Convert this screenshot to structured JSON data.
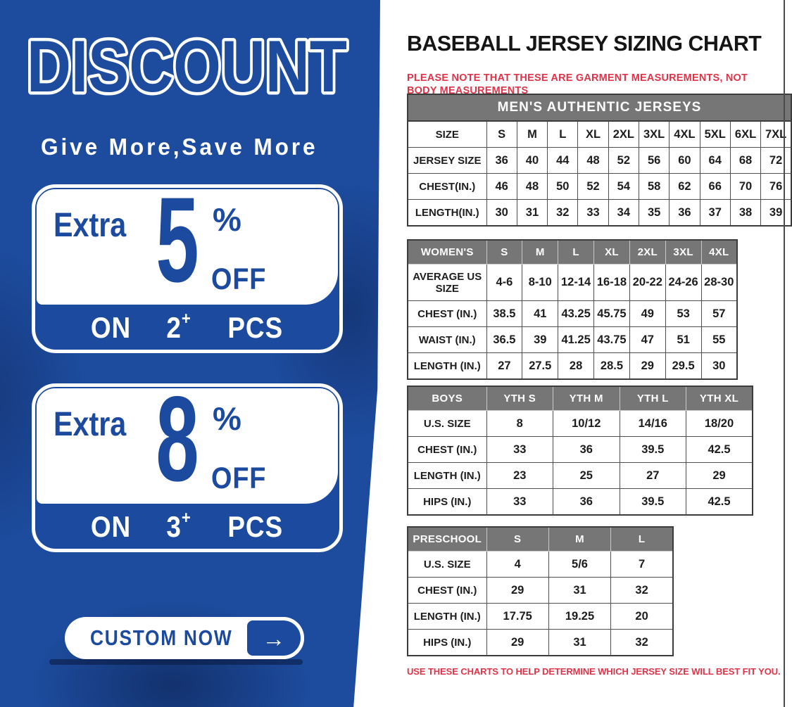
{
  "discount_panel": {
    "title": "DISCOUNT",
    "subtitle": "Give More,Save More",
    "offers": [
      {
        "prefix": "Extra",
        "value": "5",
        "percent": "%",
        "off": "OFF",
        "on": "ON",
        "qty": "2",
        "plus": "+",
        "unit": "PCS"
      },
      {
        "prefix": "Extra",
        "value": "8",
        "percent": "%",
        "off": "OFF",
        "on": "ON",
        "qty": "3",
        "plus": "+",
        "unit": "PCS"
      }
    ],
    "cta_label": "CUSTOM NOW",
    "cta_arrow": "→",
    "colors": {
      "background": "#1d4b9d",
      "accent_blue": "#1b4a9e",
      "white": "#ffffff"
    }
  },
  "sizing_chart": {
    "title": "BASEBALL JERSEY SIZING CHART",
    "note_top": "PLEASE NOTE THAT THESE ARE GARMENT MEASUREMENTS, NOT BODY MEASUREMENTS",
    "note_bottom": "USE THESE CHARTS TO HELP DETERMINE WHICH JERSEY SIZE WILL BEST FIT YOU.",
    "note_color": "#de3449",
    "header_gray": "#767676",
    "tables": [
      {
        "title": "MEN'S AUTHENTIC JERSEYS",
        "rows": [
          {
            "label": "SIZE",
            "values": [
              "S",
              "M",
              "L",
              "XL",
              "2XL",
              "3XL",
              "4XL",
              "5XL",
              "6XL",
              "7XL"
            ]
          },
          {
            "label": "JERSEY SIZE",
            "values": [
              "36",
              "40",
              "44",
              "48",
              "52",
              "56",
              "60",
              "64",
              "68",
              "72"
            ]
          },
          {
            "label": "CHEST(IN.)",
            "values": [
              "46",
              "48",
              "50",
              "52",
              "54",
              "58",
              "62",
              "66",
              "70",
              "76"
            ]
          },
          {
            "label": "LENGTH(IN.)",
            "values": [
              "30",
              "31",
              "32",
              "33",
              "34",
              "35",
              "36",
              "37",
              "38",
              "39"
            ]
          }
        ]
      },
      {
        "header_row": [
          "WOMEN'S",
          "S",
          "M",
          "L",
          "XL",
          "2XL",
          "3XL",
          "4XL"
        ],
        "rows": [
          {
            "label": "AVERAGE US SIZE",
            "values": [
              "4-6",
              "8-10",
              "12-14",
              "16-18",
              "20-22",
              "24-26",
              "28-30"
            ]
          },
          {
            "label": "CHEST (IN.)",
            "values": [
              "38.5",
              "41",
              "43.25",
              "45.75",
              "49",
              "53",
              "57"
            ]
          },
          {
            "label": "WAIST (IN.)",
            "values": [
              "36.5",
              "39",
              "41.25",
              "43.75",
              "47",
              "51",
              "55"
            ]
          },
          {
            "label": "LENGTH (IN.)",
            "values": [
              "27",
              "27.5",
              "28",
              "28.5",
              "29",
              "29.5",
              "30"
            ]
          }
        ]
      },
      {
        "header_row": [
          "BOYS",
          "YTH S",
          "YTH M",
          "YTH L",
          "YTH XL"
        ],
        "rows": [
          {
            "label": "U.S. SIZE",
            "values": [
              "8",
              "10/12",
              "14/16",
              "18/20"
            ]
          },
          {
            "label": "CHEST (IN.)",
            "values": [
              "33",
              "36",
              "39.5",
              "42.5"
            ]
          },
          {
            "label": "LENGTH (IN.)",
            "values": [
              "23",
              "25",
              "27",
              "29"
            ]
          },
          {
            "label": "HIPS (IN.)",
            "values": [
              "33",
              "36",
              "39.5",
              "42.5"
            ]
          }
        ]
      },
      {
        "header_row": [
          "PRESCHOOL",
          "S",
          "M",
          "L"
        ],
        "rows": [
          {
            "label": "U.S. SIZE",
            "values": [
              "4",
              "5/6",
              "7"
            ]
          },
          {
            "label": "CHEST (IN.)",
            "values": [
              "29",
              "31",
              "32"
            ]
          },
          {
            "label": "LENGTH (IN.)",
            "values": [
              "17.75",
              "19.25",
              "20"
            ]
          },
          {
            "label": "HIPS (IN.)",
            "values": [
              "29",
              "31",
              "32"
            ]
          }
        ]
      }
    ]
  }
}
